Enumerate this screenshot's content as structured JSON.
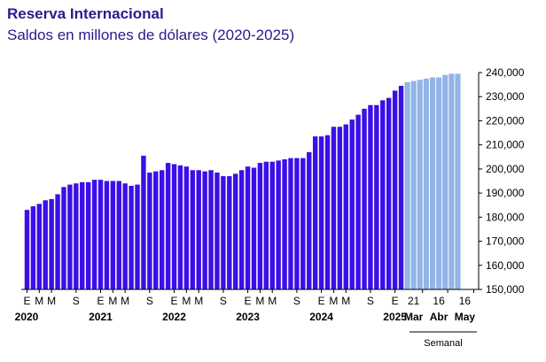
{
  "title": "Reserva Internacional",
  "subtitle": "Saldos en millones de dólares (2020-2025)",
  "colors": {
    "monthly_bar": "#3b0fe8",
    "weekly_bar": "#92b4e6",
    "axis": "#000000"
  },
  "chart_data": {
    "type": "bar",
    "title": "Reserva Internacional",
    "subtitle": "Saldos en millones de dólares (2020-2025)",
    "ylim": [
      150000,
      240000
    ],
    "y_ticks": [
      "150,000",
      "160,000",
      "170,000",
      "180,000",
      "190,000",
      "200,000",
      "210,000",
      "220,000",
      "230,000",
      "240,000"
    ],
    "y_tick_values": [
      150000,
      160000,
      170000,
      180000,
      190000,
      200000,
      210000,
      220000,
      230000,
      240000
    ],
    "grid": false,
    "series": [
      {
        "values": [
          183000,
          184500,
          185500,
          187000,
          187500,
          189500,
          192500,
          193500,
          194000,
          194500,
          194500,
          195500,
          195500,
          195000,
          195000,
          195000,
          194000,
          193000,
          193500,
          205500,
          198500,
          199000,
          199500,
          202500,
          202000,
          201500,
          201000,
          199500,
          199500,
          199000,
          199500,
          198500,
          197000,
          197000,
          198000,
          199500,
          201000,
          200500,
          202500,
          203000,
          203000,
          203500,
          204000,
          204500,
          204500,
          204500,
          207000,
          213500,
          213500,
          214000,
          217500,
          217500,
          218500,
          220500,
          222500,
          225000,
          226500,
          226500,
          228500,
          229500,
          232500,
          234500
        ]
      },
      {
        "values": [
          236000,
          236500,
          237000,
          237500,
          238000,
          238000,
          239000,
          239500,
          239500
        ]
      }
    ],
    "x_month_labels": [
      "E",
      "M",
      "M",
      "S",
      "E",
      "M",
      "M",
      "S",
      "E",
      "M",
      "M",
      "S",
      "E",
      "M",
      "M",
      "S",
      "E",
      "M",
      "M",
      "S",
      "E"
    ],
    "x_year_labels": [
      "2020",
      "2021",
      "2022",
      "2023",
      "2024",
      "2025"
    ],
    "x_weekly_labels": [
      {
        "day": "21",
        "month": "Mar"
      },
      {
        "day": "16",
        "month": "Abr"
      },
      {
        "day": "16",
        "month": "May"
      }
    ],
    "weekly_group_label": "Semanal"
  }
}
